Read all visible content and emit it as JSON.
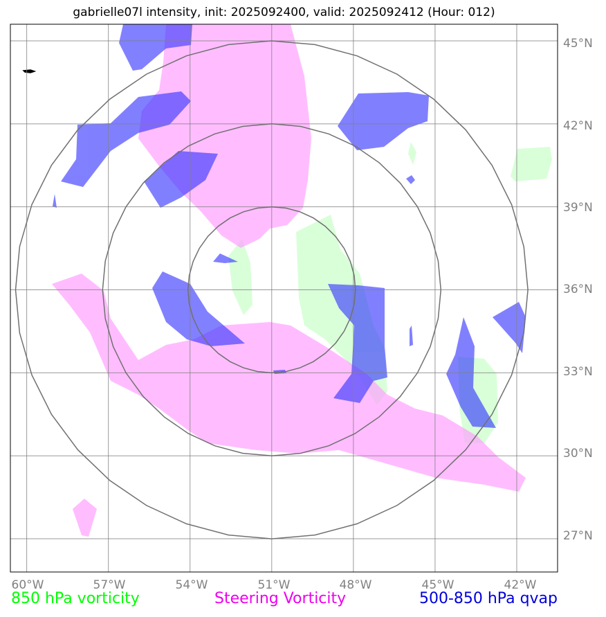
{
  "title": "gabrielle07l intensity, init: 2025092400, valid: 2025092412 (Hour: 012)",
  "map": {
    "lon_labels": [
      "60°W",
      "57°W",
      "54°W",
      "51°W",
      "48°W",
      "45°W",
      "42°W"
    ],
    "lat_labels": [
      "45°N",
      "42°N",
      "39°N",
      "36°N",
      "33°N",
      "30°N",
      "27°N"
    ],
    "lon_range": [
      -60.6,
      -40.5
    ],
    "lat_range": [
      25.8,
      45.6
    ],
    "range_rings_center": {
      "lon": -51.0,
      "lat": 36.0
    },
    "range_rings_deg": [
      3,
      6,
      9
    ],
    "colors": {
      "vorticity_850": "#ccffcc",
      "steering_vorticity": "#ff99ff",
      "qvap_500_850": "#3333ff",
      "gridlines": "#808080",
      "range_rings": "#707070"
    }
  },
  "legend": {
    "vorticity_label": "850 hPa vorticity",
    "vorticity_color": "#00ff00",
    "steering_label": "Steering Vorticity",
    "steering_color": "#ee00ee",
    "qvap_label": "500-850 hPa qvap",
    "qvap_color": "#0000dd"
  }
}
